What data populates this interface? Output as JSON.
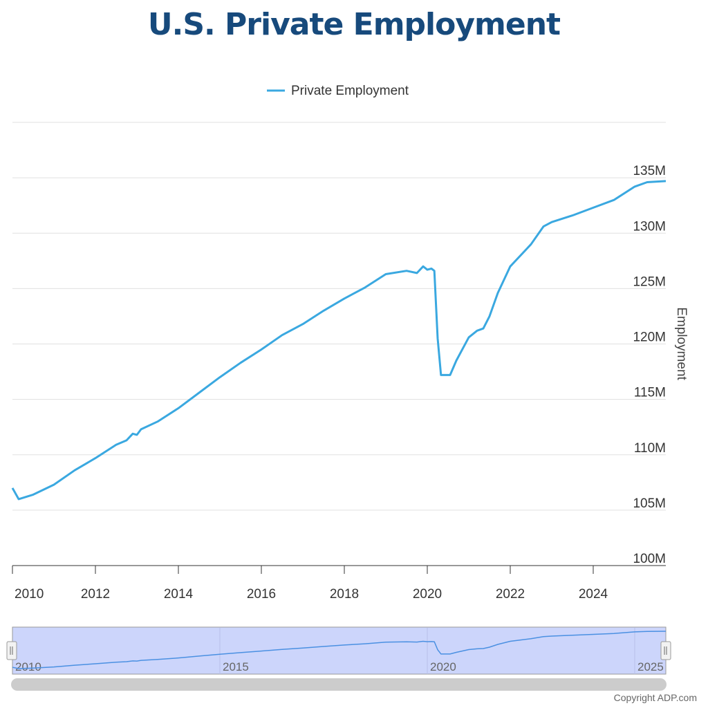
{
  "title": "U.S. Private Employment",
  "copyright": "Copyright ADP.com",
  "colors": {
    "series": "#3aa8e0",
    "title": "#174a7c",
    "navigator_fill": "#ccd5fb"
  },
  "chart_data": {
    "type": "line",
    "title": "U.S. Private Employment",
    "ylabel": "Employment",
    "xlabel": "",
    "legend": {
      "position": "top-center",
      "entries": [
        "Private Employment"
      ]
    },
    "grid": true,
    "xlim": [
      2010.0,
      2025.75
    ],
    "ylim": [
      100,
      140
    ],
    "x_ticks": [
      "2010",
      "2012",
      "2014",
      "2016",
      "2018",
      "2020",
      "2022",
      "2024"
    ],
    "y_ticks": [
      "100M",
      "105M",
      "110M",
      "115M",
      "120M",
      "125M",
      "130M",
      "135M"
    ],
    "navigator_ticks": [
      "2010",
      "2015",
      "2020",
      "2025"
    ],
    "series": [
      {
        "name": "Private Employment",
        "unit": "millions",
        "points": [
          [
            2010.0,
            107.0
          ],
          [
            2010.15,
            106.0
          ],
          [
            2010.5,
            106.4
          ],
          [
            2011.0,
            107.3
          ],
          [
            2011.5,
            108.6
          ],
          [
            2012.0,
            109.7
          ],
          [
            2012.5,
            110.9
          ],
          [
            2012.75,
            111.3
          ],
          [
            2012.9,
            111.9
          ],
          [
            2013.0,
            111.8
          ],
          [
            2013.1,
            112.3
          ],
          [
            2013.5,
            113.0
          ],
          [
            2014.0,
            114.2
          ],
          [
            2014.5,
            115.6
          ],
          [
            2015.0,
            117.0
          ],
          [
            2015.5,
            118.3
          ],
          [
            2016.0,
            119.5
          ],
          [
            2016.5,
            120.8
          ],
          [
            2017.0,
            121.8
          ],
          [
            2017.5,
            123.0
          ],
          [
            2018.0,
            124.1
          ],
          [
            2018.5,
            125.1
          ],
          [
            2019.0,
            126.3
          ],
          [
            2019.5,
            126.6
          ],
          [
            2019.75,
            126.4
          ],
          [
            2019.9,
            127.0
          ],
          [
            2020.0,
            126.7
          ],
          [
            2020.1,
            126.8
          ],
          [
            2020.17,
            126.6
          ],
          [
            2020.25,
            120.5
          ],
          [
            2020.33,
            117.2
          ],
          [
            2020.55,
            117.2
          ],
          [
            2020.7,
            118.5
          ],
          [
            2021.0,
            120.6
          ],
          [
            2021.2,
            121.2
          ],
          [
            2021.35,
            121.4
          ],
          [
            2021.5,
            122.5
          ],
          [
            2021.7,
            124.6
          ],
          [
            2022.0,
            127.0
          ],
          [
            2022.5,
            129.0
          ],
          [
            2022.8,
            130.6
          ],
          [
            2023.0,
            131.0
          ],
          [
            2023.5,
            131.6
          ],
          [
            2024.0,
            132.3
          ],
          [
            2024.5,
            133.0
          ],
          [
            2025.0,
            134.2
          ],
          [
            2025.3,
            134.6
          ],
          [
            2025.75,
            134.7
          ]
        ]
      }
    ]
  }
}
